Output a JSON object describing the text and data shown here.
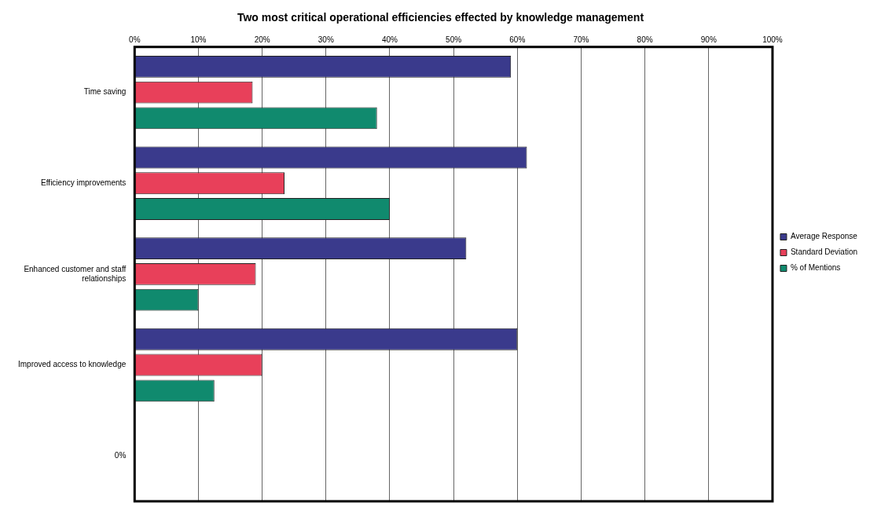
{
  "chart_data": {
    "type": "bar",
    "orientation": "horizontal",
    "title": "Two most critical operational efficiencies effected by knowledge management",
    "categories": [
      "Time saving",
      "Efficiency improvements",
      "Enhanced customer and staff relationships",
      "Improved access to knowledge",
      "0%"
    ],
    "series": [
      {
        "name": "Average Response",
        "color": "#3a3a8c",
        "values": [
          59,
          61.5,
          52,
          60,
          null
        ]
      },
      {
        "name": "Standard Deviation",
        "color": "#e8405a",
        "values": [
          18.5,
          23.5,
          19,
          20,
          null
        ]
      },
      {
        "name": "% of Mentions",
        "color": "#108a6e",
        "values": [
          38,
          40,
          10,
          12.5,
          null
        ]
      }
    ],
    "xlim": [
      0,
      100
    ],
    "xticks": [
      {
        "value": 0,
        "label": "0%"
      },
      {
        "value": 10,
        "label": "10%"
      },
      {
        "value": 20,
        "label": "20%"
      },
      {
        "value": 30,
        "label": "30%"
      },
      {
        "value": 40,
        "label": "40%"
      },
      {
        "value": 50,
        "label": "50%"
      },
      {
        "value": 60,
        "label": "60%"
      },
      {
        "value": 70,
        "label": "70%"
      },
      {
        "value": 80,
        "label": "80%"
      },
      {
        "value": 90,
        "label": "90%"
      },
      {
        "value": 100,
        "label": "100%"
      }
    ],
    "grid": "x",
    "legend": "right"
  }
}
